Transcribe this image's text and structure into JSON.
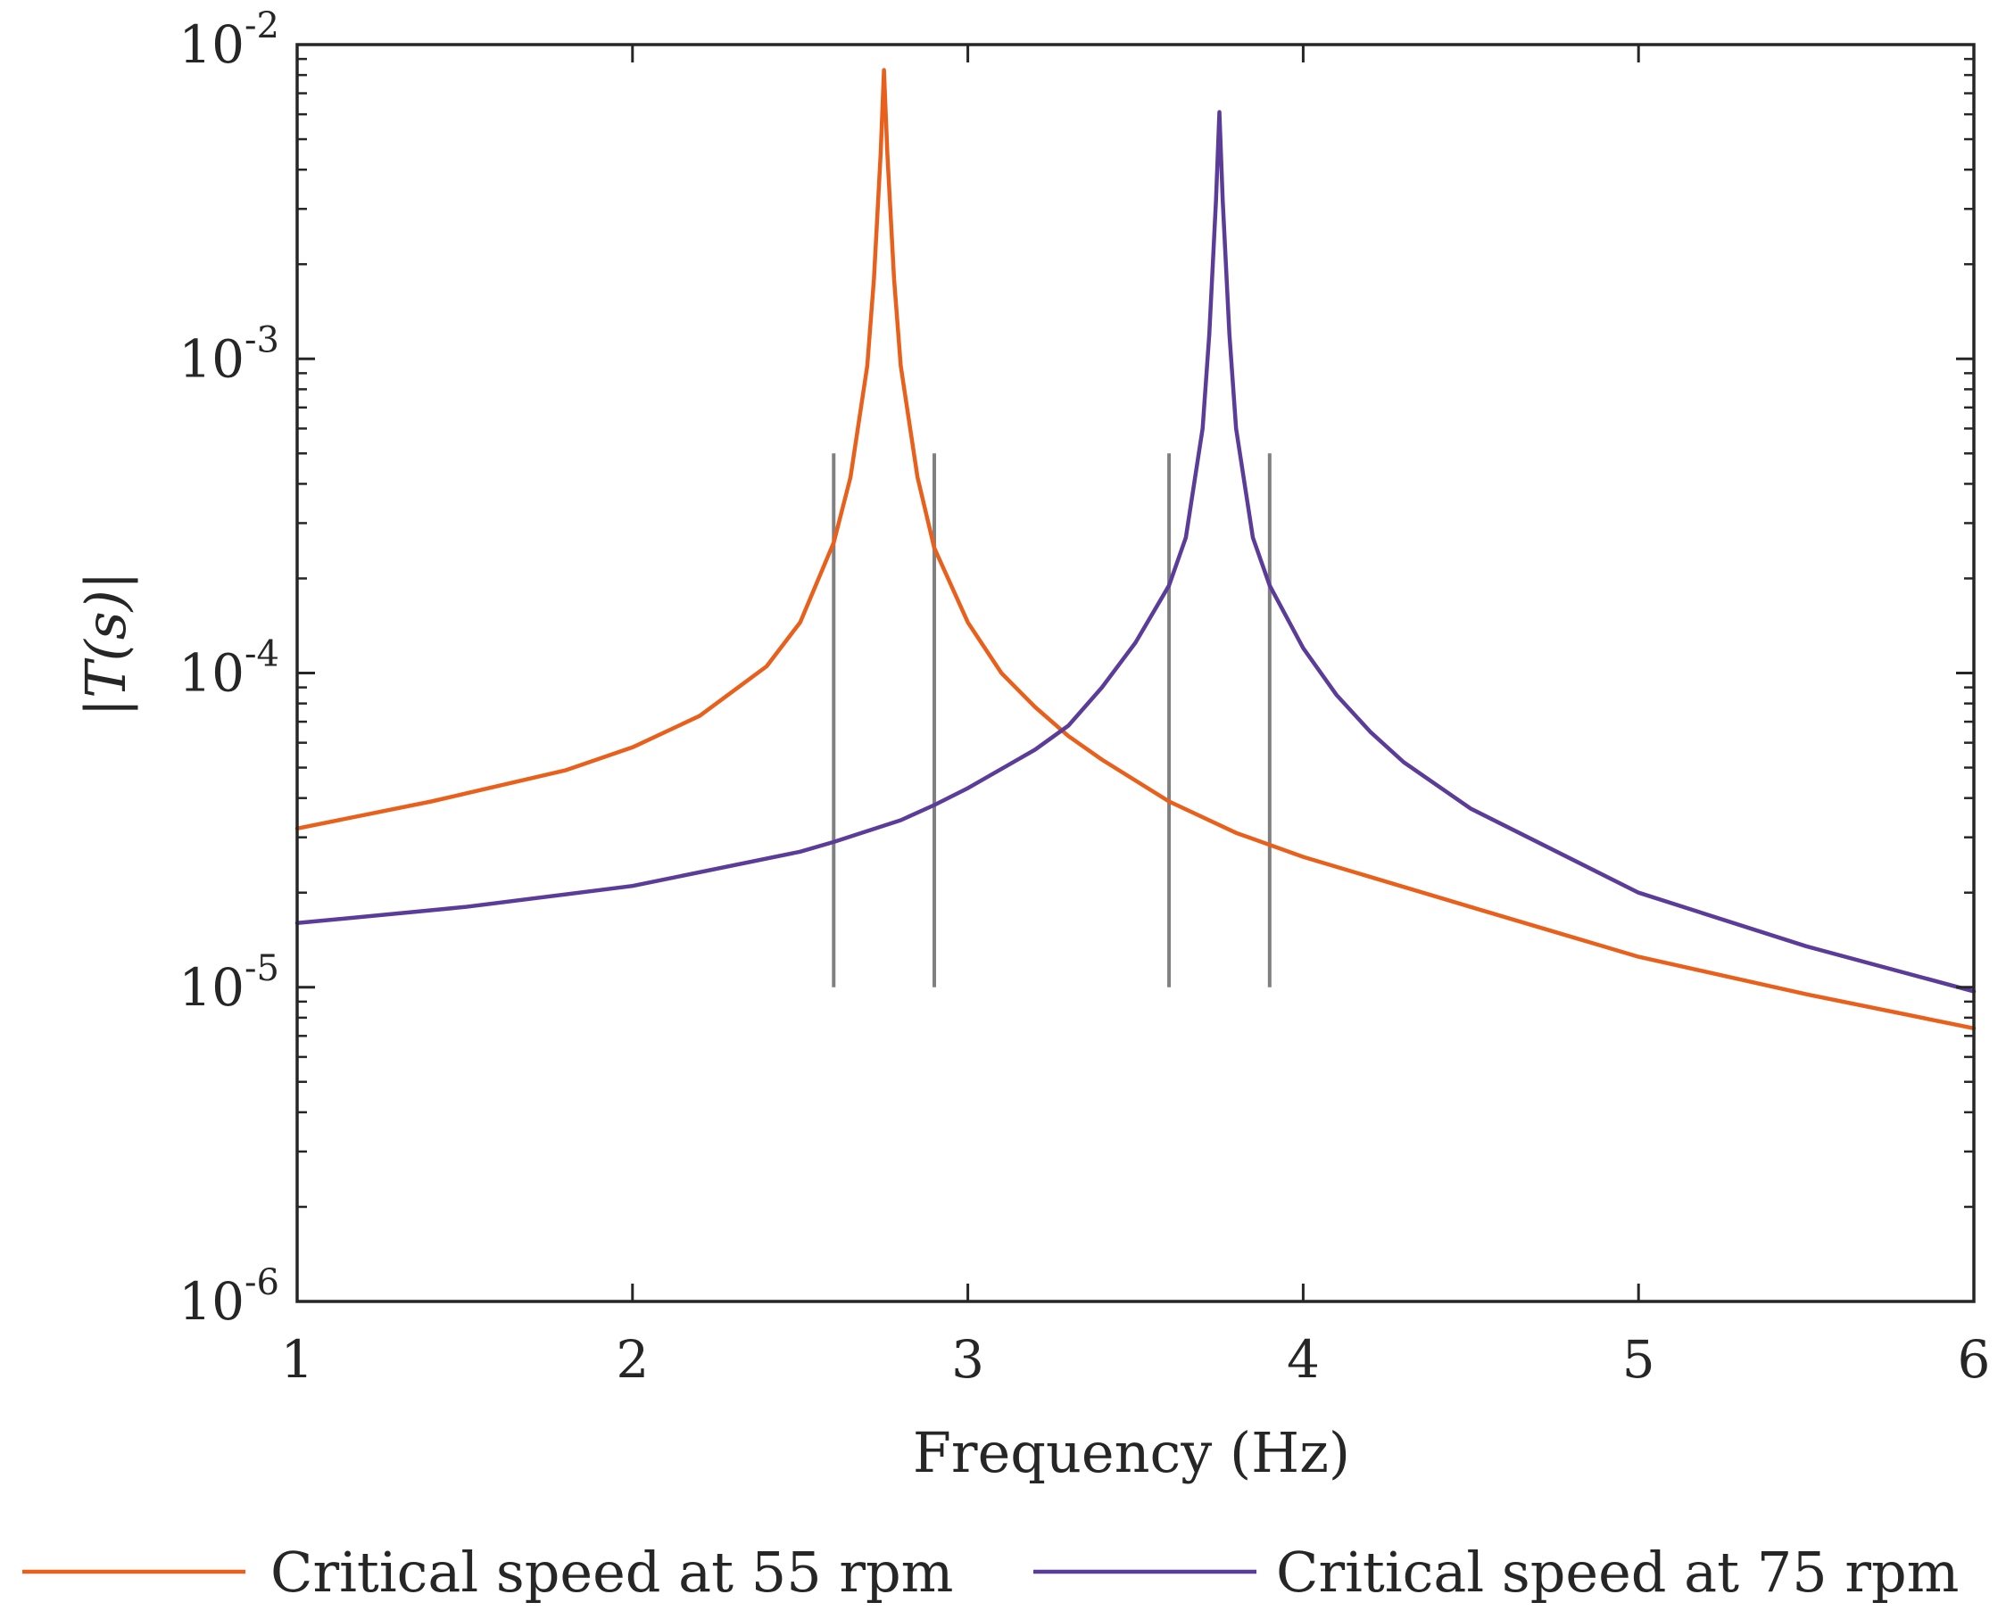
{
  "chart_data": {
    "type": "line",
    "title": "",
    "xlabel": "Frequency (Hz)",
    "ylabel": "|T(s)|",
    "xlim": [
      1,
      6
    ],
    "ylim": [
      1e-06,
      0.01
    ],
    "yscale": "log",
    "x_ticks": [
      1,
      2,
      3,
      4,
      5,
      6
    ],
    "x_tick_labels": [
      "1",
      "2",
      "3",
      "4",
      "5",
      "6"
    ],
    "y_ticks": [
      {
        "value": 1e-06,
        "base": "10",
        "exp": "-6"
      },
      {
        "value": 1e-05,
        "base": "10",
        "exp": "-5"
      },
      {
        "value": 0.0001,
        "base": "10",
        "exp": "-4"
      },
      {
        "value": 0.001,
        "base": "10",
        "exp": "-3"
      },
      {
        "value": 0.01,
        "base": "10",
        "exp": "-2"
      }
    ],
    "grid": false,
    "legend_position": "bottom",
    "series": [
      {
        "name": "Critical speed at 55 rpm",
        "color": "#E8601C",
        "x": [
          1.0,
          1.4,
          1.8,
          2.0,
          2.2,
          2.4,
          2.5,
          2.6,
          2.65,
          2.7,
          2.72,
          2.74,
          2.75,
          2.76,
          2.78,
          2.8,
          2.85,
          2.9,
          3.0,
          3.1,
          3.2,
          3.3,
          3.4,
          3.6,
          3.8,
          4.0,
          4.5,
          5.0,
          5.5,
          6.0
        ],
        "y": [
          3.2e-05,
          3.9e-05,
          4.9e-05,
          5.8e-05,
          7.3e-05,
          0.000105,
          0.000145,
          0.00026,
          0.00042,
          0.00095,
          0.0018,
          0.0045,
          0.0083,
          0.0045,
          0.0018,
          0.00095,
          0.00042,
          0.00025,
          0.000145,
          0.0001,
          7.8e-05,
          6.3e-05,
          5.3e-05,
          3.9e-05,
          3.1e-05,
          2.6e-05,
          1.8e-05,
          1.25e-05,
          9.5e-06,
          7.4e-06
        ]
      },
      {
        "name": "Critical speed at 75 rpm",
        "color": "#5B3C99",
        "x": [
          1.0,
          1.5,
          2.0,
          2.5,
          2.6,
          2.8,
          2.9,
          3.0,
          3.2,
          3.3,
          3.4,
          3.5,
          3.6,
          3.65,
          3.7,
          3.72,
          3.74,
          3.75,
          3.76,
          3.78,
          3.8,
          3.85,
          3.9,
          4.0,
          4.1,
          4.2,
          4.3,
          4.5,
          5.0,
          5.5,
          6.0
        ],
        "y": [
          1.6e-05,
          1.8e-05,
          2.1e-05,
          2.7e-05,
          2.9e-05,
          3.4e-05,
          3.8e-05,
          4.3e-05,
          5.7e-05,
          6.8e-05,
          9e-05,
          0.000125,
          0.00019,
          0.00027,
          0.0006,
          0.0012,
          0.0032,
          0.0061,
          0.0032,
          0.0012,
          0.0006,
          0.00027,
          0.00019,
          0.00012,
          8.5e-05,
          6.5e-05,
          5.2e-05,
          3.7e-05,
          2e-05,
          1.35e-05,
          9.7e-06
        ]
      }
    ],
    "vertical_markers": {
      "color": "#808080",
      "x": [
        2.6,
        2.9,
        3.6,
        3.9
      ],
      "y_range": [
        1e-05,
        0.0005
      ]
    }
  }
}
